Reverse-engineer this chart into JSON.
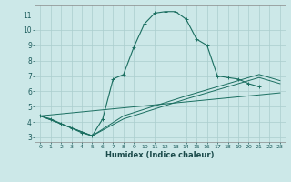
{
  "xlabel": "Humidex (Indice chaleur)",
  "bg_color": "#cce8e8",
  "grid_color": "#aacece",
  "line_color": "#1a6e60",
  "xlim": [
    -0.5,
    23.5
  ],
  "ylim": [
    2.7,
    11.6
  ],
  "xticks": [
    0,
    1,
    2,
    3,
    4,
    5,
    6,
    7,
    8,
    9,
    10,
    11,
    12,
    13,
    14,
    15,
    16,
    17,
    18,
    19,
    20,
    21,
    22,
    23
  ],
  "yticks": [
    3,
    4,
    5,
    6,
    7,
    8,
    9,
    10,
    11
  ],
  "main_x": [
    0,
    1,
    2,
    3,
    4,
    5,
    6,
    7,
    8,
    9,
    10,
    11,
    12,
    13,
    14,
    15,
    16,
    17,
    18,
    19,
    20,
    21
  ],
  "main_y": [
    4.4,
    4.2,
    3.9,
    3.6,
    3.3,
    3.1,
    4.2,
    6.8,
    7.1,
    8.9,
    10.4,
    11.1,
    11.2,
    11.2,
    10.7,
    9.4,
    9.0,
    7.0,
    6.9,
    6.8,
    6.5,
    6.3
  ],
  "line1_x": [
    0,
    23
  ],
  "line1_y": [
    4.4,
    5.9
  ],
  "line2_x": [
    0,
    5,
    8,
    14,
    18,
    21,
    23
  ],
  "line2_y": [
    4.4,
    3.1,
    4.2,
    5.5,
    6.3,
    6.9,
    6.5
  ],
  "line3_x": [
    0,
    5,
    8,
    14,
    18,
    21,
    23
  ],
  "line3_y": [
    4.4,
    3.1,
    4.4,
    5.7,
    6.5,
    7.1,
    6.7
  ]
}
